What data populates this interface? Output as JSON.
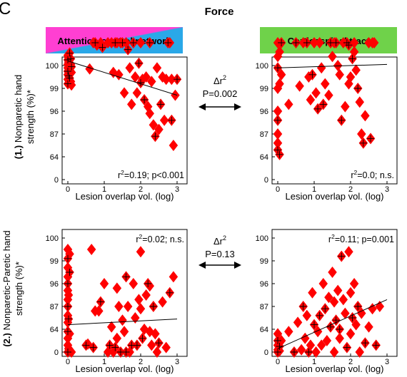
{
  "figure": {
    "panel_letter": "C",
    "title": "Force",
    "col_headers": [
      "Attention-control network",
      "Corticospinal tract"
    ],
    "row_labels": [
      {
        "num": "(1.)",
        "text1": "Nonparetic hand",
        "text2": "strength (%)*"
      },
      {
        "num": "(2.)",
        "text1": "Nonparetic-Paretic hand",
        "text2": "strength (%)*"
      }
    ],
    "between": [
      {
        "delta": "Δr",
        "sup": "2",
        "p": "P=0.002"
      },
      {
        "delta": "Δr",
        "sup": "2",
        "p": "P=0.13"
      }
    ],
    "colors": {
      "marker": "#ff0000",
      "attention_gradient": [
        "#ff3fd2",
        "#2aa8e8"
      ],
      "corticospinal": "#6fd24a"
    }
  },
  "chart_data": [
    {
      "type": "scatter",
      "panel": "row1-attention",
      "xlabel": "Lesion overlap vol. (log)",
      "xlim": [
        0,
        3
      ],
      "xticks": [
        "0",
        "1",
        "2",
        "3"
      ],
      "yticks": [
        "0",
        "64",
        "87",
        "96",
        "99",
        "100"
      ],
      "stat_r": "r",
      "stat_sup": "2",
      "stat_rest": "=0.19; p<0.001",
      "fit": [
        [
          0,
          5.2
        ],
        [
          3,
          3.7
        ]
      ],
      "points": [
        [
          0,
          4.2
        ],
        [
          0,
          4.4
        ],
        [
          0,
          4.6
        ],
        [
          0,
          4.75
        ],
        [
          0,
          4.9
        ],
        [
          0,
          5.05
        ],
        [
          0,
          5.25
        ],
        [
          0,
          5.45
        ],
        [
          0.02,
          4.35
        ],
        [
          0.02,
          4.55
        ],
        [
          0.02,
          5.15
        ],
        [
          0.02,
          5.35
        ],
        [
          0.05,
          4.45
        ],
        [
          0.05,
          4.65
        ],
        [
          0.05,
          4.85
        ],
        [
          0.05,
          5.55
        ],
        [
          0.08,
          4.3
        ],
        [
          0.08,
          5.05
        ],
        [
          0.08,
          5.3
        ],
        [
          0.1,
          4.15
        ],
        [
          0.1,
          4.7
        ],
        [
          0.1,
          4.95
        ],
        [
          0.6,
          4.85
        ],
        [
          0.7,
          6.0
        ],
        [
          0.75,
          6.0
        ],
        [
          0.8,
          5.9
        ],
        [
          0.9,
          6.0
        ],
        [
          0.95,
          5.8
        ],
        [
          1.1,
          6.0
        ],
        [
          1.25,
          4.7
        ],
        [
          1.3,
          6.0
        ],
        [
          1.35,
          6.0
        ],
        [
          1.45,
          6.0
        ],
        [
          1.5,
          6.0
        ],
        [
          1.55,
          3.8
        ],
        [
          1.6,
          6.0
        ],
        [
          1.65,
          5.7
        ],
        [
          1.7,
          4.9
        ],
        [
          1.75,
          3.3
        ],
        [
          1.8,
          6.0
        ],
        [
          1.85,
          4.5
        ],
        [
          1.9,
          3.8
        ],
        [
          1.95,
          5.1
        ],
        [
          2.0,
          6.0
        ],
        [
          2.05,
          4.4
        ],
        [
          2.1,
          3.5
        ],
        [
          2.15,
          4.5
        ],
        [
          2.2,
          3.2
        ],
        [
          2.25,
          6.0
        ],
        [
          2.3,
          4.3
        ],
        [
          2.35,
          2.4
        ],
        [
          2.4,
          1.9
        ],
        [
          2.45,
          4.9
        ],
        [
          2.5,
          2.2
        ],
        [
          2.55,
          3.3
        ],
        [
          2.6,
          4.5
        ],
        [
          2.7,
          4.4
        ],
        [
          2.75,
          6.0
        ],
        [
          2.8,
          6.0
        ],
        [
          2.85,
          4.4
        ],
        [
          2.85,
          2.6
        ],
        [
          2.9,
          1.5
        ],
        [
          2.95,
          3.7
        ],
        [
          3.0,
          4.4
        ],
        [
          1.2,
          6.0
        ],
        [
          1.4,
          4.6
        ],
        [
          2.0,
          4.25
        ],
        [
          2.25,
          2.9
        ],
        [
          2.65,
          2.6
        ]
      ]
    },
    {
      "type": "scatter",
      "panel": "row1-corticospinal",
      "xlabel": "Lesion overlap vol. (log)",
      "xlim": [
        0,
        3
      ],
      "xticks": [
        "0",
        "1",
        "2",
        "3"
      ],
      "yticks": [
        "0",
        "64",
        "87",
        "96",
        "99",
        "100"
      ],
      "stat_r": "r",
      "stat_sup": "2",
      "stat_rest": "=0.0; n.s.",
      "fit": [
        [
          0,
          4.9
        ],
        [
          3,
          5.05
        ]
      ],
      "points": [
        [
          0,
          1.3
        ],
        [
          0,
          1.6
        ],
        [
          0,
          2.0
        ],
        [
          0,
          2.6
        ],
        [
          0,
          3.0
        ],
        [
          0,
          4.0
        ],
        [
          0,
          4.9
        ],
        [
          0,
          5.4
        ],
        [
          0,
          6.0
        ],
        [
          0.05,
          1.1
        ],
        [
          0.05,
          4.2
        ],
        [
          0.05,
          5.6
        ],
        [
          0.1,
          6.0
        ],
        [
          0.1,
          4.6
        ],
        [
          0.3,
          3.3
        ],
        [
          0.5,
          6.0
        ],
        [
          0.6,
          4.1
        ],
        [
          0.7,
          6.0
        ],
        [
          0.8,
          6.0
        ],
        [
          0.85,
          4.5
        ],
        [
          0.9,
          3.5
        ],
        [
          0.95,
          4.6
        ],
        [
          1.0,
          6.0
        ],
        [
          1.05,
          3.8
        ],
        [
          1.1,
          3.1
        ],
        [
          1.15,
          6.0
        ],
        [
          1.2,
          4.9
        ],
        [
          1.25,
          3.3
        ],
        [
          1.3,
          4.2
        ],
        [
          1.4,
          3.7
        ],
        [
          1.45,
          6.0
        ],
        [
          1.5,
          5.4
        ],
        [
          1.55,
          6.0
        ],
        [
          1.6,
          6.0
        ],
        [
          1.65,
          5.0
        ],
        [
          1.7,
          4.6
        ],
        [
          1.75,
          2.6
        ],
        [
          1.8,
          6.0
        ],
        [
          1.85,
          3.2
        ],
        [
          1.9,
          6.0
        ],
        [
          1.95,
          4.2
        ],
        [
          2.0,
          4.5
        ],
        [
          2.05,
          5.3
        ],
        [
          2.1,
          6.0
        ],
        [
          2.15,
          4.8
        ],
        [
          2.2,
          4.0
        ],
        [
          2.25,
          3.4
        ],
        [
          2.3,
          2.0
        ],
        [
          2.35,
          1.6
        ],
        [
          2.4,
          2.8
        ],
        [
          2.5,
          6.0
        ],
        [
          2.55,
          1.8
        ],
        [
          2.6,
          6.0
        ],
        [
          2.65,
          6.0
        ],
        [
          1.95,
          5.9
        ],
        [
          2.1,
          5.6
        ]
      ]
    },
    {
      "type": "scatter",
      "panel": "row2-attention",
      "xlabel": "Lesion overlap vol. (log)",
      "xlim": [
        0,
        3
      ],
      "xticks": [
        "0",
        "1",
        "2",
        "3"
      ],
      "yticks": [
        "0",
        "64",
        "87",
        "96",
        "99",
        "100"
      ],
      "stat_r": "r",
      "stat_sup": "2",
      "stat_rest": "=0.02; n.s.",
      "fit": [
        [
          0,
          1.2
        ],
        [
          3,
          1.45
        ]
      ],
      "points": [
        [
          0,
          0
        ],
        [
          0,
          0.3
        ],
        [
          0,
          0.6
        ],
        [
          0,
          0.9
        ],
        [
          0,
          1.3
        ],
        [
          0,
          1.6
        ],
        [
          0,
          2.0
        ],
        [
          0,
          2.3
        ],
        [
          0,
          2.7
        ],
        [
          0,
          3.0
        ],
        [
          0,
          3.3
        ],
        [
          0,
          3.7
        ],
        [
          0,
          4.1
        ],
        [
          0,
          4.5
        ],
        [
          0.02,
          0.15
        ],
        [
          0.02,
          1.45
        ],
        [
          0.02,
          2.5
        ],
        [
          0.05,
          0.8
        ],
        [
          0.05,
          3.5
        ],
        [
          0.05,
          4.3
        ],
        [
          0.1,
          0
        ],
        [
          0.5,
          0.3
        ],
        [
          0.55,
          0.35
        ],
        [
          0.65,
          4.5
        ],
        [
          0.7,
          0.2
        ],
        [
          0.75,
          1.8
        ],
        [
          0.85,
          1.8
        ],
        [
          0.9,
          2.2
        ],
        [
          1.0,
          3.0
        ],
        [
          1.1,
          0
        ],
        [
          1.15,
          0.3
        ],
        [
          1.2,
          1.1
        ],
        [
          1.25,
          0
        ],
        [
          1.3,
          0.2
        ],
        [
          1.35,
          2.8
        ],
        [
          1.4,
          2.0
        ],
        [
          1.45,
          0
        ],
        [
          1.5,
          1.4
        ],
        [
          1.55,
          0.9
        ],
        [
          1.6,
          3.3
        ],
        [
          1.65,
          2.0
        ],
        [
          1.7,
          0
        ],
        [
          1.75,
          0.3
        ],
        [
          1.8,
          3.0
        ],
        [
          1.85,
          1.5
        ],
        [
          1.9,
          0.3
        ],
        [
          1.95,
          2.3
        ],
        [
          2.0,
          4.4
        ],
        [
          2.05,
          0.6
        ],
        [
          2.1,
          1.0
        ],
        [
          2.15,
          2.5
        ],
        [
          2.2,
          3.0
        ],
        [
          2.25,
          2.9
        ],
        [
          2.3,
          0.3
        ],
        [
          2.35,
          2.0
        ],
        [
          2.4,
          0.8
        ],
        [
          2.45,
          0
        ],
        [
          2.5,
          0.4
        ],
        [
          2.6,
          2.2
        ],
        [
          2.7,
          0.2
        ],
        [
          2.8,
          2.6
        ],
        [
          2.9,
          3.3
        ],
        [
          1.35,
          0.6
        ],
        [
          1.6,
          0
        ],
        [
          2.0,
          1.9
        ],
        [
          2.25,
          0.9
        ]
      ]
    },
    {
      "type": "scatter",
      "panel": "row2-corticospinal",
      "xlabel": "Lesion overlap vol. (log)",
      "xlim": [
        0,
        3
      ],
      "xticks": [
        "0",
        "1",
        "2",
        "3"
      ],
      "yticks": [
        "0",
        "64",
        "87",
        "96",
        "99",
        "100"
      ],
      "stat_r": "r",
      "stat_sup": "2",
      "stat_rest": "=0.11; p=0.001",
      "fit": [
        [
          0,
          0.15
        ],
        [
          3,
          2.3
        ]
      ],
      "points": [
        [
          0,
          0
        ],
        [
          0,
          0.1
        ],
        [
          0,
          0.3
        ],
        [
          0,
          0.5
        ],
        [
          0,
          0.8
        ],
        [
          0.05,
          0.05
        ],
        [
          0.05,
          0.25
        ],
        [
          0.1,
          0.5
        ],
        [
          0.3,
          0.9
        ],
        [
          0.45,
          0
        ],
        [
          0.55,
          1.3
        ],
        [
          0.65,
          0.1
        ],
        [
          0.7,
          2.0
        ],
        [
          0.75,
          0.6
        ],
        [
          0.8,
          1.6
        ],
        [
          0.85,
          0
        ],
        [
          0.9,
          0.3
        ],
        [
          0.95,
          2.6
        ],
        [
          1.0,
          1.2
        ],
        [
          1.05,
          0
        ],
        [
          1.1,
          0.9
        ],
        [
          1.15,
          1.6
        ],
        [
          1.2,
          0.3
        ],
        [
          1.25,
          3.0
        ],
        [
          1.3,
          1.9
        ],
        [
          1.35,
          0.5
        ],
        [
          1.4,
          2.4
        ],
        [
          1.45,
          1.1
        ],
        [
          1.5,
          3.5
        ],
        [
          1.55,
          2.2
        ],
        [
          1.6,
          1.4
        ],
        [
          1.65,
          2.7
        ],
        [
          1.7,
          0.6
        ],
        [
          1.75,
          4.2
        ],
        [
          1.8,
          2.3
        ],
        [
          1.85,
          1.7
        ],
        [
          1.9,
          0.2
        ],
        [
          1.95,
          4.4
        ],
        [
          2.0,
          2.6
        ],
        [
          2.05,
          1.5
        ],
        [
          2.1,
          3.0
        ],
        [
          2.15,
          1.2
        ],
        [
          2.2,
          2.0
        ],
        [
          2.25,
          0
        ],
        [
          2.3,
          1.7
        ],
        [
          2.4,
          0.4
        ],
        [
          2.5,
          1.1
        ],
        [
          2.6,
          1.9
        ],
        [
          2.7,
          0.3
        ],
        [
          2.8,
          2.0
        ],
        [
          1.55,
          0
        ],
        [
          1.7,
          1.0
        ],
        [
          2.0,
          0.8
        ]
      ]
    }
  ]
}
